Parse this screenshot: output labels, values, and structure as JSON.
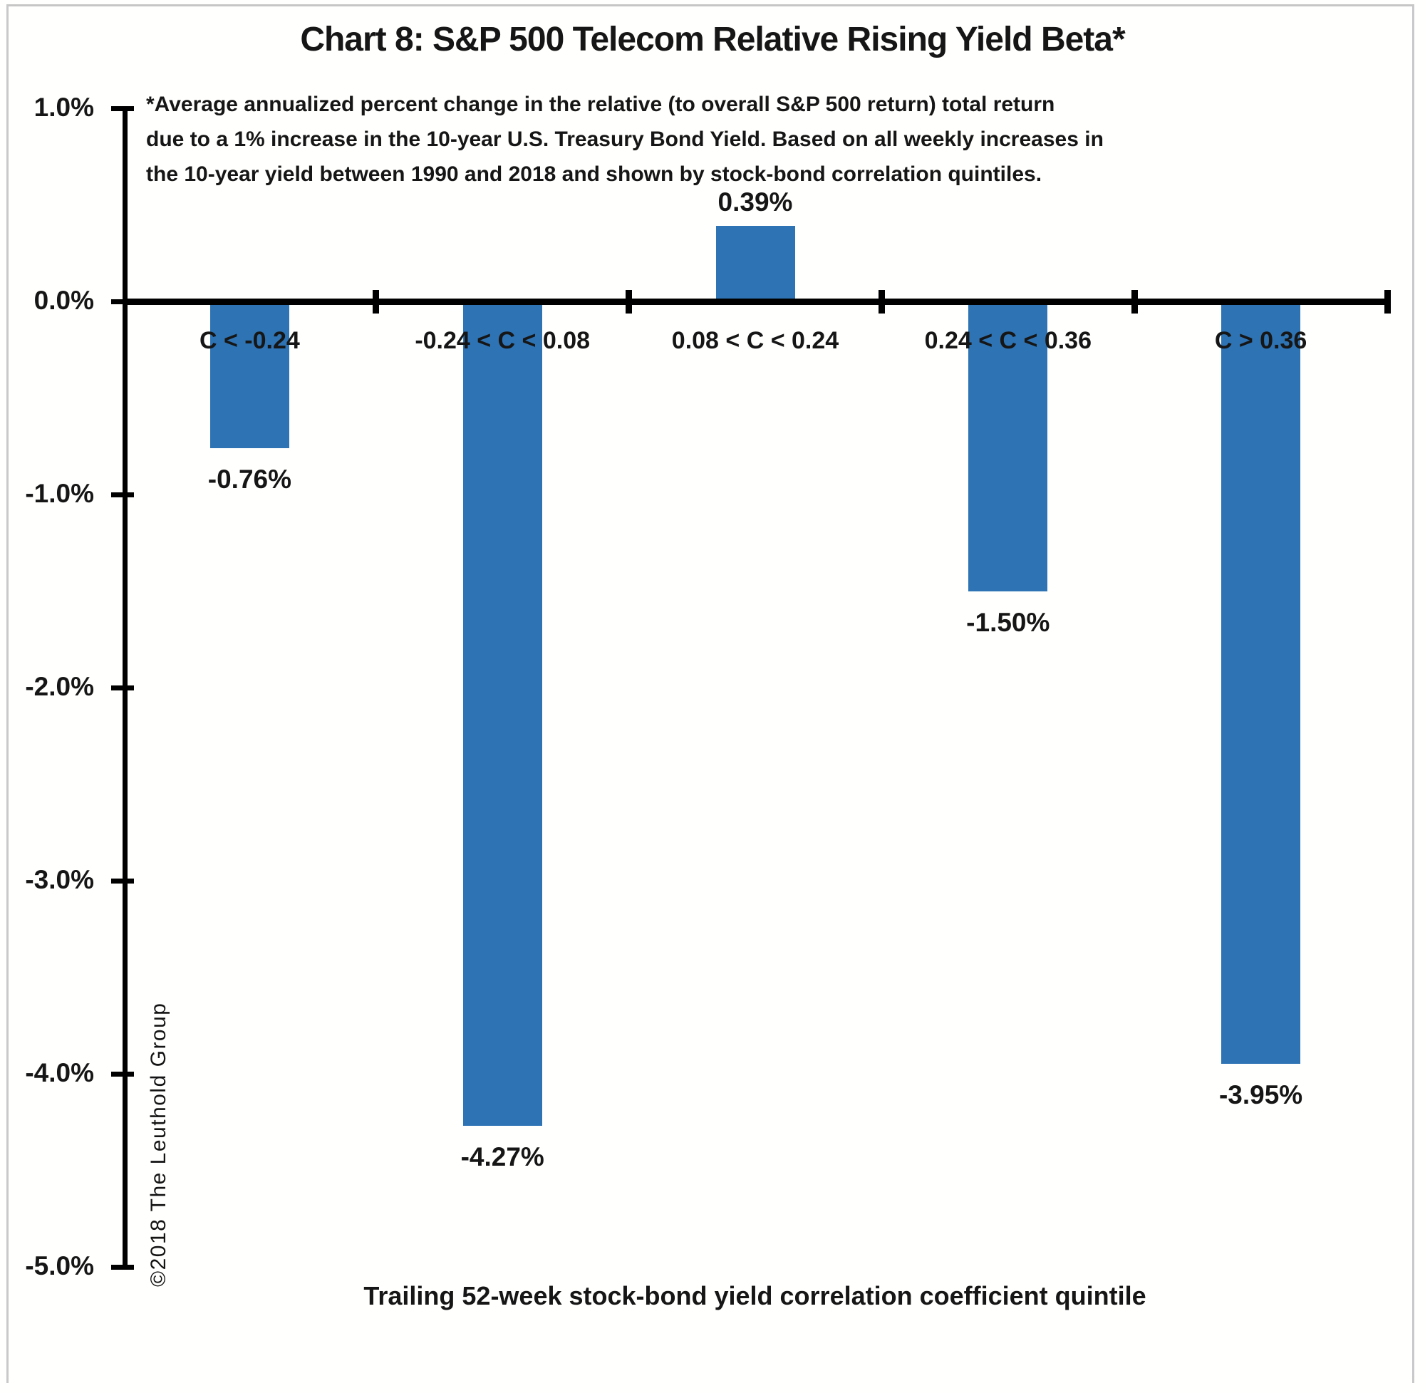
{
  "frame": {
    "border_color": "#c9c9c9",
    "background": "#fffffd"
  },
  "chart_data": {
    "type": "bar",
    "title": "Chart 8: S&P 500 Telecom Relative Rising Yield Beta*",
    "footnote_lines": [
      "*Average annualized percent change in the relative (to overall S&P 500 return) total return",
      "due to a 1% increase in the 10-year U.S. Treasury Bond Yield. Based on all weekly increases in",
      "the 10-year yield between 1990 and 2018 and shown by stock-bond correlation quintiles."
    ],
    "categories": [
      "C < -0.24",
      "-0.24 < C < 0.08",
      "0.08 < C < 0.24",
      "0.24 < C < 0.36",
      "C > 0.36"
    ],
    "values": [
      -0.76,
      -4.27,
      0.39,
      -1.5,
      -3.95
    ],
    "value_labels": [
      "-0.76%",
      "-4.27%",
      "0.39%",
      "-1.50%",
      "-3.95%"
    ],
    "xlabel": "Trailing 52-week stock-bond yield correlation coefficient quintile",
    "ylabel": "",
    "ylim": [
      -5.0,
      1.0
    ],
    "y_ticks": [
      {
        "label": "1.0%",
        "value": 1.0
      },
      {
        "label": "0.0%",
        "value": 0.0
      },
      {
        "label": "-1.0%",
        "value": -1.0
      },
      {
        "label": "-2.0%",
        "value": -2.0
      },
      {
        "label": "-3.0%",
        "value": -3.0
      },
      {
        "label": "-4.0%",
        "value": -4.0
      },
      {
        "label": "-5.0%",
        "value": -5.0
      }
    ],
    "grid": false,
    "legend": null,
    "bar_color": "#2E74B5",
    "axis_color": "#000000",
    "copyright": "©2018 The Leuthold Group"
  }
}
